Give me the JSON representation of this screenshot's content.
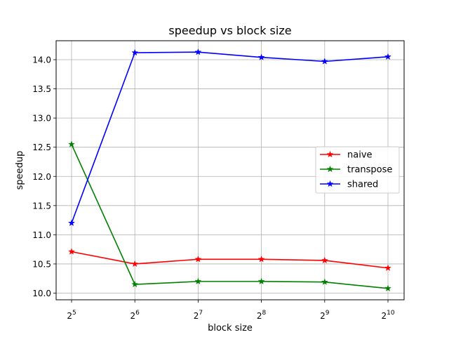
{
  "chart_data": {
    "type": "line",
    "title": "speedup vs block size",
    "xlabel": "block size",
    "ylabel": "speedup",
    "x_scale": "log2",
    "x": [
      32,
      64,
      128,
      256,
      512,
      1024
    ],
    "x_tick_labels": [
      {
        "base": "2",
        "exp": "5"
      },
      {
        "base": "2",
        "exp": "6"
      },
      {
        "base": "2",
        "exp": "7"
      },
      {
        "base": "2",
        "exp": "8"
      },
      {
        "base": "2",
        "exp": "9"
      },
      {
        "base": "2",
        "exp": "10"
      }
    ],
    "ylim": [
      9.9,
      14.2
    ],
    "y_ticks": [
      "10.0",
      "10.5",
      "11.0",
      "11.5",
      "12.0",
      "12.5",
      "13.0",
      "13.5",
      "14.0"
    ],
    "grid": true,
    "legend_position": "right",
    "series": [
      {
        "name": "naive",
        "color": "#ff0000",
        "marker": "star",
        "values": [
          10.71,
          10.5,
          10.58,
          10.58,
          10.56,
          10.43
        ]
      },
      {
        "name": "transpose",
        "color": "#008000",
        "marker": "star",
        "values": [
          12.55,
          10.15,
          10.2,
          10.2,
          10.19,
          10.08
        ]
      },
      {
        "name": "shared",
        "color": "#0000ff",
        "marker": "star",
        "values": [
          11.2,
          14.12,
          14.13,
          14.04,
          13.97,
          14.05
        ]
      }
    ]
  }
}
